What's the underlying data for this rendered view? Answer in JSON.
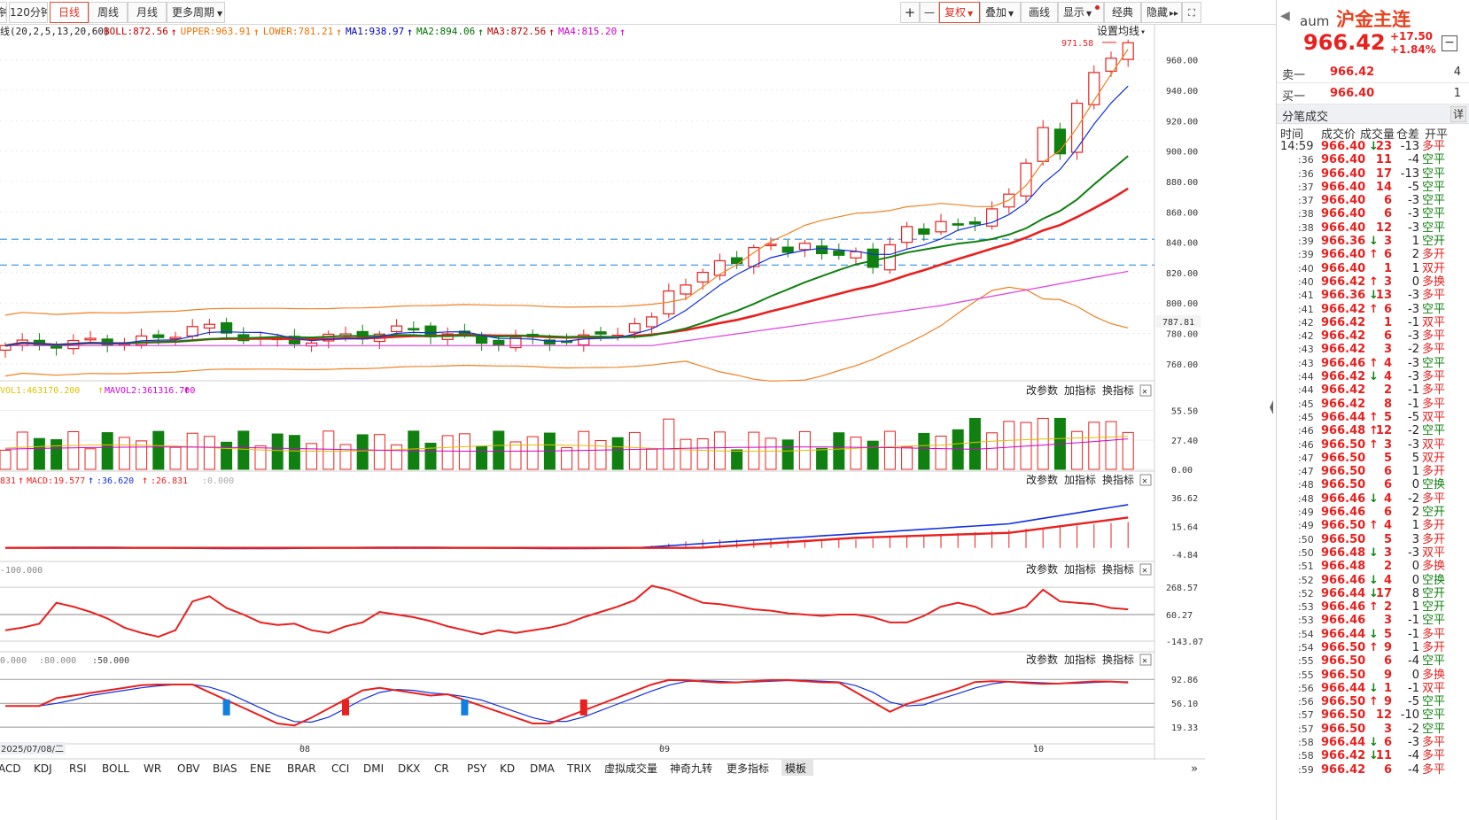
{
  "toolbar": {
    "left": [
      "钟",
      "120分钟",
      "日线",
      "周线",
      "月线",
      "更多周期"
    ],
    "active": "日线",
    "right": [
      "+",
      "—",
      "复权",
      "叠加",
      "画线",
      "显示",
      "经典",
      "隐藏"
    ]
  },
  "legend": {
    "prefix": "线(20,2,5,13,20,60)",
    "items": [
      {
        "text": "BOLL:872.56",
        "color": "#c00000"
      },
      {
        "text": "UPPER:963.91",
        "color": "#f07000"
      },
      {
        "text": "LOWER:781.21",
        "color": "#f07000"
      },
      {
        "text": "MA1:938.97",
        "color": "#0000c0"
      },
      {
        "text": "MA2:894.06",
        "color": "#007000"
      },
      {
        "text": "MA3:872.56",
        "color": "#c00000"
      },
      {
        "text": "MA4:815.20",
        "color": "#d000d0"
      }
    ],
    "setting": "设置均线"
  },
  "price_axis": [
    "960.00",
    "940.00",
    "920.00",
    "900.00",
    "880.00",
    "860.00",
    "840.00",
    "820.00",
    "800.00",
    "780.00",
    "760.00"
  ],
  "current_level": "787.81",
  "high_mark": "971.58",
  "panel_buttons": [
    "改参数",
    "加指标",
    "换指标"
  ],
  "vol": {
    "legend1": "VOL1:463170.200",
    "legend2": "MAVOL2:361316.700",
    "ticks": [
      "55.50",
      "27.40",
      "0.00"
    ]
  },
  "macd": {
    "legend_a": "831",
    "legend_b": "MACD:19.577",
    "legend_c": ":36.620",
    "legend_d": ":26.831",
    "legend_e": ":0.000",
    "ticks": [
      "36.62",
      "15.64",
      "-4.84"
    ]
  },
  "cci": {
    "legend": "-100.000",
    "ticks": [
      "268.57",
      "60.27",
      "-143.07"
    ]
  },
  "kdj": {
    "legend_a": "0.000",
    "legend_b": ":80.000",
    "legend_c": ":50.000",
    "ticks": [
      "92.86",
      "56.10",
      "19.33"
    ]
  },
  "date_axis": {
    "first": "2025/07/08/二",
    "labels": [
      "08",
      "09",
      "10"
    ]
  },
  "tabs": [
    "ACD",
    "KDJ",
    "RSI",
    "BOLL",
    "WR",
    "OBV",
    "BIAS",
    "ENE",
    "BRAR",
    "CCI",
    "DMI",
    "DKX",
    "CR",
    "PSY",
    "KD",
    "DMA",
    "TRIX",
    "虚拟成交量",
    "神奇九转",
    "更多指标",
    "模板"
  ],
  "active_tab": "模板",
  "side": {
    "code": "aum",
    "name": "沪金主连",
    "price": "966.42",
    "change": "+17.50",
    "pct": "+1.84%",
    "sell_label": "卖一",
    "sell_price": "966.42",
    "sell_qty": "4",
    "buy_label": "买一",
    "buy_price": "966.40",
    "buy_qty": "1",
    "trades_title": "分笔成交",
    "detail": "详",
    "cols": [
      "时间",
      "成交价",
      "成交量",
      "仓差",
      "开平"
    ],
    "trades": [
      [
        "14:59",
        "966.40",
        "d",
        "23",
        "-13",
        "多平"
      ],
      [
        ":36",
        "966.40",
        "",
        "11",
        "-4",
        "空平"
      ],
      [
        ":36",
        "966.40",
        "",
        "17",
        "-13",
        "空平"
      ],
      [
        ":37",
        "966.40",
        "",
        "14",
        "-5",
        "空平"
      ],
      [
        ":37",
        "966.40",
        "",
        "6",
        "-3",
        "空平"
      ],
      [
        ":38",
        "966.40",
        "",
        "6",
        "-3",
        "空平"
      ],
      [
        ":38",
        "966.40",
        "",
        "12",
        "-3",
        "空平"
      ],
      [
        ":39",
        "966.36",
        "d",
        "3",
        "1",
        "空开"
      ],
      [
        ":39",
        "966.40",
        "u",
        "6",
        "2",
        "多开"
      ],
      [
        ":40",
        "966.40",
        "",
        "1",
        "1",
        "双开"
      ],
      [
        ":40",
        "966.42",
        "u",
        "3",
        "0",
        "多换"
      ],
      [
        ":41",
        "966.36",
        "d",
        "13",
        "-3",
        "多平"
      ],
      [
        ":41",
        "966.42",
        "u",
        "6",
        "-3",
        "空平"
      ],
      [
        ":42",
        "966.42",
        "",
        "1",
        "-1",
        "双平"
      ],
      [
        ":42",
        "966.42",
        "",
        "6",
        "-3",
        "多平"
      ],
      [
        ":43",
        "966.42",
        "",
        "3",
        "-2",
        "多平"
      ],
      [
        ":43",
        "966.46",
        "u",
        "4",
        "-3",
        "空平"
      ],
      [
        ":44",
        "966.42",
        "d",
        "4",
        "-3",
        "多平"
      ],
      [
        ":44",
        "966.42",
        "",
        "2",
        "-1",
        "多平"
      ],
      [
        ":45",
        "966.42",
        "",
        "8",
        "-1",
        "多平"
      ],
      [
        ":45",
        "966.44",
        "u",
        "5",
        "-5",
        "双平"
      ],
      [
        ":46",
        "966.48",
        "u",
        "12",
        "-2",
        "空平"
      ],
      [
        ":46",
        "966.50",
        "u",
        "3",
        "-3",
        "双平"
      ],
      [
        ":47",
        "966.50",
        "",
        "5",
        "5",
        "双开"
      ],
      [
        ":47",
        "966.50",
        "",
        "6",
        "1",
        "多开"
      ],
      [
        ":48",
        "966.50",
        "",
        "6",
        "0",
        "空换"
      ],
      [
        ":48",
        "966.46",
        "d",
        "4",
        "-2",
        "多平"
      ],
      [
        ":49",
        "966.46",
        "",
        "6",
        "2",
        "空开"
      ],
      [
        ":49",
        "966.50",
        "u",
        "4",
        "1",
        "多开"
      ],
      [
        ":50",
        "966.50",
        "",
        "5",
        "3",
        "多开"
      ],
      [
        ":50",
        "966.48",
        "d",
        "3",
        "-3",
        "双平"
      ],
      [
        ":51",
        "966.48",
        "",
        "2",
        "0",
        "多换"
      ],
      [
        ":52",
        "966.46",
        "d",
        "4",
        "0",
        "空换"
      ],
      [
        ":52",
        "966.44",
        "d",
        "17",
        "8",
        "空开"
      ],
      [
        ":53",
        "966.46",
        "u",
        "2",
        "1",
        "空开"
      ],
      [
        ":53",
        "966.46",
        "",
        "3",
        "-1",
        "空平"
      ],
      [
        ":54",
        "966.44",
        "d",
        "5",
        "-1",
        "多平"
      ],
      [
        ":54",
        "966.50",
        "u",
        "9",
        "1",
        "多开"
      ],
      [
        ":55",
        "966.50",
        "",
        "6",
        "-4",
        "空平"
      ],
      [
        ":55",
        "966.50",
        "",
        "9",
        "0",
        "多换"
      ],
      [
        ":56",
        "966.44",
        "d",
        "1",
        "-1",
        "双平"
      ],
      [
        ":56",
        "966.50",
        "u",
        "9",
        "-5",
        "空平"
      ],
      [
        ":57",
        "966.50",
        "",
        "12",
        "-10",
        "空平"
      ],
      [
        ":57",
        "966.50",
        "",
        "3",
        "-2",
        "空平"
      ],
      [
        ":58",
        "966.44",
        "d",
        "6",
        "-3",
        "多平"
      ],
      [
        ":58",
        "966.42",
        "d",
        "11",
        "-4",
        "多平"
      ],
      [
        ":59",
        "966.42",
        "",
        "6",
        "-4",
        "多平"
      ]
    ]
  }
}
